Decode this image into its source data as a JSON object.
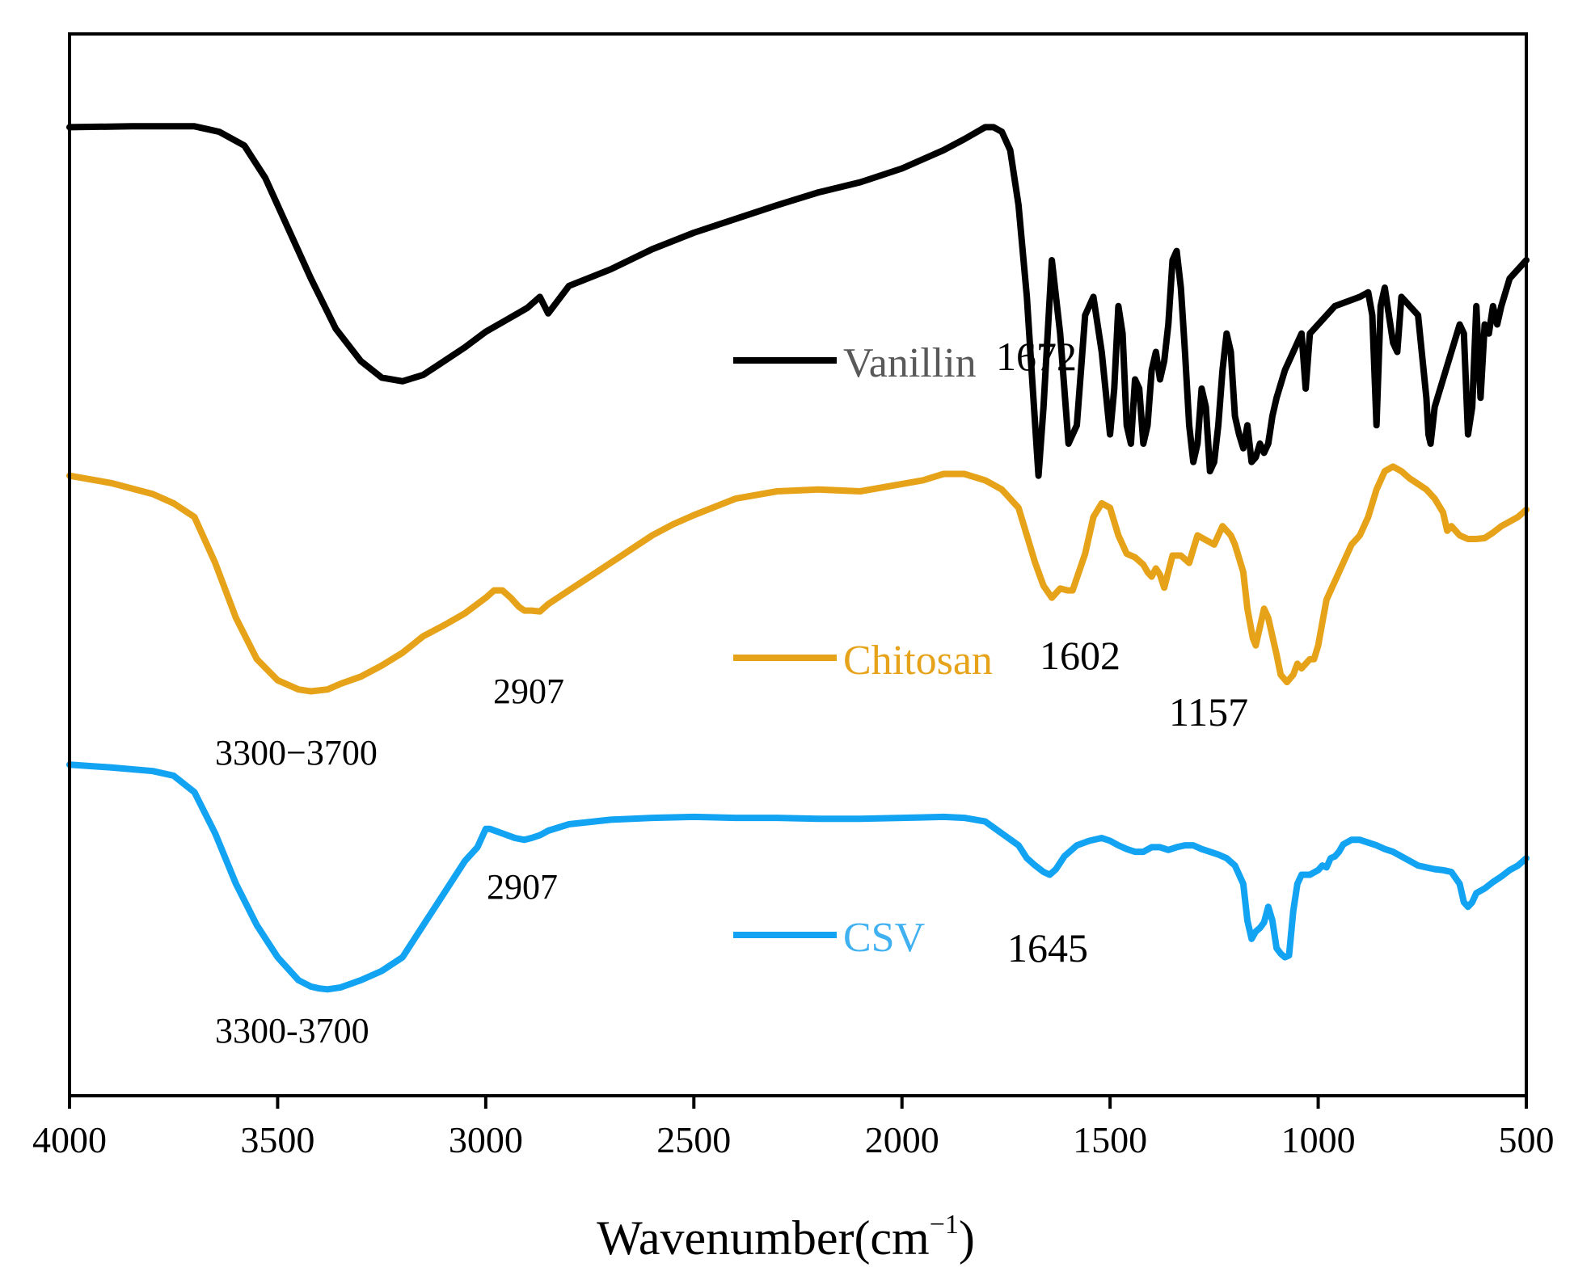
{
  "chart_data": {
    "type": "line",
    "title": "",
    "xlabel": "Wavenumber(cm",
    "xlabel_superscript": "−1",
    "xlabel_close": ")",
    "ylabel": "",
    "xlim": [
      4000,
      500
    ],
    "x_reversed": true,
    "ylim": [
      0,
      1
    ],
    "y_ticks_shown": false,
    "grid": false,
    "x_ticks": [
      4000,
      3500,
      3000,
      2500,
      2000,
      1500,
      1000,
      500
    ],
    "x_tick_labels": [
      "4000",
      "3500",
      "3000",
      "2500",
      "2000",
      "1500",
      "1000",
      "500"
    ],
    "series": [
      {
        "name": "Vanillin",
        "color": "#000000",
        "legend_text_color": "#595959",
        "x": [
          4000,
          3850,
          3700,
          3640,
          3580,
          3530,
          3480,
          3420,
          3360,
          3300,
          3250,
          3200,
          3150,
          3100,
          3050,
          3000,
          2950,
          2900,
          2870,
          2850,
          2800,
          2700,
          2600,
          2500,
          2400,
          2300,
          2200,
          2100,
          2000,
          1950,
          1900,
          1850,
          1800,
          1780,
          1760,
          1740,
          1720,
          1700,
          1690,
          1680,
          1672,
          1660,
          1640,
          1620,
          1600,
          1580,
          1560,
          1540,
          1520,
          1500,
          1490,
          1480,
          1470,
          1460,
          1450,
          1440,
          1430,
          1420,
          1410,
          1400,
          1390,
          1380,
          1370,
          1360,
          1350,
          1340,
          1330,
          1320,
          1310,
          1300,
          1290,
          1280,
          1270,
          1260,
          1250,
          1240,
          1230,
          1220,
          1210,
          1200,
          1190,
          1180,
          1170,
          1160,
          1150,
          1140,
          1130,
          1120,
          1110,
          1100,
          1080,
          1060,
          1040,
          1030,
          1020,
          1000,
          960,
          900,
          880,
          870,
          860,
          850,
          840,
          820,
          810,
          800,
          790,
          760,
          740,
          735,
          730,
          720,
          700,
          680,
          660,
          650,
          640,
          630,
          620,
          610,
          600,
          590,
          580,
          570,
          560,
          540,
          520,
          500
        ],
        "y": [
          0.945,
          0.946,
          0.946,
          0.94,
          0.925,
          0.89,
          0.84,
          0.78,
          0.725,
          0.69,
          0.672,
          0.668,
          0.675,
          0.69,
          0.705,
          0.722,
          0.735,
          0.748,
          0.76,
          0.742,
          0.772,
          0.79,
          0.812,
          0.83,
          0.845,
          0.86,
          0.874,
          0.885,
          0.9,
          0.91,
          0.92,
          0.932,
          0.945,
          0.945,
          0.94,
          0.92,
          0.86,
          0.76,
          0.69,
          0.62,
          0.565,
          0.64,
          0.8,
          0.72,
          0.6,
          0.62,
          0.74,
          0.76,
          0.7,
          0.61,
          0.66,
          0.75,
          0.72,
          0.62,
          0.6,
          0.67,
          0.66,
          0.6,
          0.62,
          0.68,
          0.7,
          0.67,
          0.69,
          0.73,
          0.8,
          0.81,
          0.77,
          0.7,
          0.62,
          0.58,
          0.6,
          0.66,
          0.64,
          0.57,
          0.58,
          0.62,
          0.68,
          0.72,
          0.7,
          0.63,
          0.61,
          0.595,
          0.62,
          0.58,
          0.585,
          0.6,
          0.59,
          0.6,
          0.63,
          0.65,
          0.68,
          0.7,
          0.72,
          0.66,
          0.72,
          0.73,
          0.75,
          0.76,
          0.765,
          0.74,
          0.62,
          0.75,
          0.77,
          0.71,
          0.7,
          0.76,
          0.755,
          0.74,
          0.65,
          0.61,
          0.6,
          0.64,
          0.67,
          0.7,
          0.73,
          0.72,
          0.61,
          0.64,
          0.75,
          0.65,
          0.73,
          0.72,
          0.75,
          0.73,
          0.75,
          0.78,
          0.79,
          0.8
        ]
      },
      {
        "name": "Chitosan",
        "color": "#E6A319",
        "legend_text_color": "#E6A319",
        "x": [
          4000,
          3900,
          3800,
          3750,
          3700,
          3650,
          3600,
          3550,
          3500,
          3450,
          3420,
          3380,
          3350,
          3300,
          3250,
          3200,
          3150,
          3100,
          3050,
          3000,
          2980,
          2960,
          2940,
          2920,
          2907,
          2890,
          2870,
          2850,
          2800,
          2750,
          2700,
          2650,
          2600,
          2550,
          2500,
          2400,
          2300,
          2200,
          2100,
          2000,
          1950,
          1900,
          1850,
          1800,
          1760,
          1720,
          1700,
          1680,
          1660,
          1640,
          1620,
          1602,
          1590,
          1560,
          1540,
          1520,
          1500,
          1480,
          1460,
          1440,
          1420,
          1410,
          1400,
          1390,
          1380,
          1370,
          1350,
          1330,
          1310,
          1300,
          1290,
          1270,
          1250,
          1230,
          1210,
          1200,
          1180,
          1170,
          1157,
          1150,
          1140,
          1130,
          1120,
          1100,
          1090,
          1075,
          1060,
          1050,
          1040,
          1020,
          1010,
          1000,
          990,
          980,
          960,
          940,
          920,
          900,
          880,
          860,
          840,
          820,
          800,
          780,
          760,
          740,
          720,
          700,
          690,
          680,
          670,
          660,
          650,
          640,
          620,
          600,
          580,
          560,
          540,
          520,
          500
        ],
        "y": [
          0.565,
          0.557,
          0.545,
          0.535,
          0.52,
          0.47,
          0.41,
          0.365,
          0.342,
          0.332,
          0.33,
          0.332,
          0.338,
          0.346,
          0.358,
          0.372,
          0.39,
          0.402,
          0.415,
          0.432,
          0.44,
          0.44,
          0.432,
          0.422,
          0.418,
          0.418,
          0.417,
          0.425,
          0.44,
          0.455,
          0.47,
          0.485,
          0.5,
          0.512,
          0.522,
          0.54,
          0.548,
          0.55,
          0.548,
          0.556,
          0.56,
          0.567,
          0.567,
          0.56,
          0.55,
          0.53,
          0.5,
          0.47,
          0.445,
          0.432,
          0.442,
          0.44,
          0.44,
          0.48,
          0.52,
          0.535,
          0.53,
          0.5,
          0.48,
          0.476,
          0.468,
          0.46,
          0.455,
          0.464,
          0.457,
          0.443,
          0.478,
          0.478,
          0.47,
          0.485,
          0.5,
          0.495,
          0.49,
          0.51,
          0.5,
          0.49,
          0.46,
          0.42,
          0.388,
          0.38,
          0.4,
          0.42,
          0.41,
          0.37,
          0.348,
          0.34,
          0.348,
          0.36,
          0.355,
          0.365,
          0.365,
          0.38,
          0.405,
          0.43,
          0.45,
          0.47,
          0.49,
          0.5,
          0.52,
          0.55,
          0.57,
          0.575,
          0.57,
          0.562,
          0.556,
          0.55,
          0.54,
          0.525,
          0.505,
          0.51,
          0.505,
          0.5,
          0.498,
          0.496,
          0.496,
          0.497,
          0.503,
          0.51,
          0.515,
          0.52,
          0.528
        ]
      },
      {
        "name": "CSV",
        "color": "#12A3F2",
        "legend_text_color": "#3FB0F0",
        "x": [
          4000,
          3900,
          3800,
          3750,
          3700,
          3650,
          3600,
          3550,
          3500,
          3450,
          3420,
          3400,
          3380,
          3350,
          3300,
          3250,
          3200,
          3150,
          3100,
          3050,
          3020,
          3000,
          2990,
          2960,
          2930,
          2907,
          2890,
          2870,
          2850,
          2800,
          2700,
          2600,
          2500,
          2400,
          2300,
          2200,
          2100,
          2000,
          1900,
          1850,
          1800,
          1760,
          1720,
          1700,
          1680,
          1660,
          1645,
          1630,
          1610,
          1580,
          1550,
          1520,
          1500,
          1480,
          1460,
          1440,
          1420,
          1400,
          1380,
          1360,
          1340,
          1320,
          1300,
          1280,
          1260,
          1240,
          1220,
          1200,
          1180,
          1170,
          1160,
          1150,
          1140,
          1130,
          1120,
          1110,
          1100,
          1090,
          1080,
          1070,
          1060,
          1050,
          1040,
          1020,
          1000,
          990,
          980,
          970,
          960,
          950,
          940,
          920,
          900,
          880,
          860,
          840,
          820,
          800,
          780,
          760,
          740,
          720,
          700,
          680,
          660,
          650,
          640,
          630,
          620,
          600,
          580,
          560,
          540,
          520,
          500
        ],
        "y": [
          0.25,
          0.247,
          0.243,
          0.238,
          0.22,
          0.175,
          0.12,
          0.075,
          0.04,
          0.015,
          0.008,
          0.006,
          0.005,
          0.007,
          0.015,
          0.025,
          0.04,
          0.075,
          0.11,
          0.145,
          0.16,
          0.18,
          0.18,
          0.175,
          0.17,
          0.168,
          0.17,
          0.173,
          0.178,
          0.185,
          0.19,
          0.192,
          0.193,
          0.192,
          0.192,
          0.191,
          0.191,
          0.192,
          0.193,
          0.192,
          0.188,
          0.175,
          0.162,
          0.148,
          0.14,
          0.133,
          0.13,
          0.136,
          0.15,
          0.162,
          0.167,
          0.17,
          0.167,
          0.162,
          0.158,
          0.155,
          0.155,
          0.16,
          0.16,
          0.157,
          0.16,
          0.162,
          0.162,
          0.158,
          0.155,
          0.152,
          0.148,
          0.14,
          0.12,
          0.08,
          0.06,
          0.068,
          0.072,
          0.078,
          0.095,
          0.08,
          0.05,
          0.044,
          0.04,
          0.042,
          0.09,
          0.12,
          0.13,
          0.13,
          0.135,
          0.14,
          0.138,
          0.148,
          0.15,
          0.155,
          0.163,
          0.168,
          0.168,
          0.165,
          0.162,
          0.158,
          0.155,
          0.15,
          0.145,
          0.14,
          0.138,
          0.136,
          0.135,
          0.133,
          0.12,
          0.1,
          0.095,
          0.1,
          0.11,
          0.115,
          0.122,
          0.128,
          0.135,
          0.14,
          0.148
        ]
      }
    ],
    "legend": {
      "placement": "center-right, one entry above each curve",
      "entries": [
        "Vanillin",
        "Chitosan",
        "CSV"
      ]
    },
    "annotations": [
      {
        "text": "1672",
        "series": "Vanillin",
        "x_data": 1672
      },
      {
        "text": "3300−3700",
        "series": "Chitosan",
        "x_data": 3500
      },
      {
        "text": "2907",
        "series": "Chitosan",
        "x_data": 2907
      },
      {
        "text": "1602",
        "series": "Chitosan",
        "x_data": 1602
      },
      {
        "text": "1157",
        "series": "Chitosan",
        "x_data": 1157
      },
      {
        "text": "3300-3700",
        "series": "CSV",
        "x_data": 3500
      },
      {
        "text": "2907",
        "series": "CSV",
        "x_data": 2907
      },
      {
        "text": "1645",
        "series": "CSV",
        "x_data": 1645
      }
    ]
  }
}
